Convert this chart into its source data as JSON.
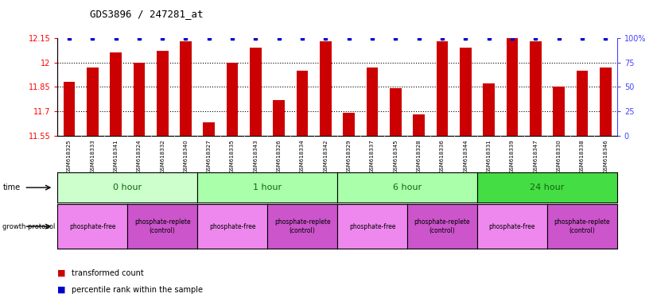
{
  "title": "GDS3896 / 247281_at",
  "samples": [
    "GSM618325",
    "GSM618333",
    "GSM618341",
    "GSM618324",
    "GSM618332",
    "GSM618340",
    "GSM618327",
    "GSM618335",
    "GSM618343",
    "GSM618326",
    "GSM618334",
    "GSM618342",
    "GSM618329",
    "GSM618337",
    "GSM618345",
    "GSM618328",
    "GSM618336",
    "GSM618344",
    "GSM618331",
    "GSM618339",
    "GSM618347",
    "GSM618330",
    "GSM618338",
    "GSM618346"
  ],
  "values": [
    11.88,
    11.97,
    12.06,
    12.0,
    12.07,
    12.13,
    11.63,
    12.0,
    12.09,
    11.77,
    11.95,
    12.13,
    11.69,
    11.97,
    11.84,
    11.68,
    12.13,
    12.09,
    11.87,
    12.15,
    12.13,
    11.85,
    11.95,
    11.97
  ],
  "percentile_ranks": [
    100,
    100,
    100,
    100,
    100,
    100,
    100,
    100,
    100,
    100,
    100,
    100,
    100,
    100,
    100,
    100,
    100,
    100,
    100,
    100,
    100,
    100,
    100,
    100
  ],
  "bar_color": "#cc0000",
  "percentile_color": "#0000cc",
  "ylim_left": [
    11.55,
    12.15
  ],
  "ylim_right": [
    0,
    100
  ],
  "yticks_left": [
    11.55,
    11.7,
    11.85,
    12.0,
    12.15
  ],
  "ytick_labels_left": [
    "11.55",
    "11.7",
    "11.85",
    "12",
    "12.15"
  ],
  "yticks_right": [
    0,
    25,
    50,
    75,
    100
  ],
  "ytick_labels_right": [
    "0",
    "25",
    "50",
    "75",
    "100%"
  ],
  "grid_lines": [
    11.7,
    11.85,
    12.0
  ],
  "time_groups": [
    {
      "label": "0 hour",
      "start": 0,
      "end": 6,
      "color": "#ccffcc"
    },
    {
      "label": "1 hour",
      "start": 6,
      "end": 12,
      "color": "#aaffaa"
    },
    {
      "label": "6 hour",
      "start": 12,
      "end": 18,
      "color": "#aaffaa"
    },
    {
      "label": "24 hour",
      "start": 18,
      "end": 24,
      "color": "#44dd44"
    }
  ],
  "protocol_groups": [
    {
      "label": "phosphate-free",
      "start": 0,
      "end": 3,
      "color": "#ee88ee"
    },
    {
      "label": "phosphate-replete\n(control)",
      "start": 3,
      "end": 6,
      "color": "#cc55cc"
    },
    {
      "label": "phosphate-free",
      "start": 6,
      "end": 9,
      "color": "#ee88ee"
    },
    {
      "label": "phosphate-replete\n(control)",
      "start": 9,
      "end": 12,
      "color": "#cc55cc"
    },
    {
      "label": "phosphate-free",
      "start": 12,
      "end": 15,
      "color": "#ee88ee"
    },
    {
      "label": "phosphate-replete\n(control)",
      "start": 15,
      "end": 18,
      "color": "#cc55cc"
    },
    {
      "label": "phosphate-free",
      "start": 18,
      "end": 21,
      "color": "#ee88ee"
    },
    {
      "label": "phosphate-replete\n(control)",
      "start": 21,
      "end": 24,
      "color": "#cc55cc"
    }
  ],
  "tick_bg_color": "#dddddd",
  "legend_bar_label": "transformed count",
  "legend_pct_label": "percentile rank within the sample",
  "time_label": "time",
  "protocol_label": "growth protocol"
}
